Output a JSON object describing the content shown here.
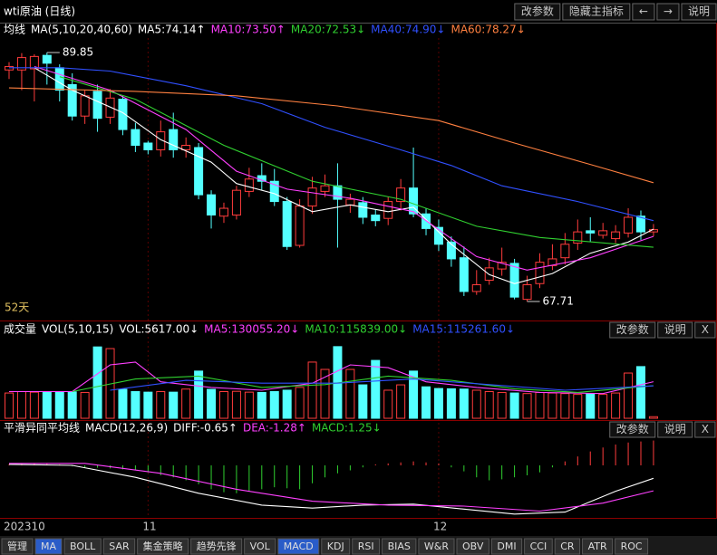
{
  "window": {
    "title": "wti原油 (日线)",
    "buttons": [
      "改参数",
      "隐藏主指标",
      "←",
      "→",
      "说明"
    ]
  },
  "chart_data": [
    {
      "type": "candlestick",
      "name": "均线",
      "indicator": "MA(5,10,20,40,60)",
      "period_label": "52天",
      "ylim": [
        66.18,
        91.14
      ],
      "xticks": [
        {
          "value": 0,
          "label": "202310"
        },
        {
          "value": 11,
          "label": "11"
        },
        {
          "value": 34,
          "label": "12"
        }
      ],
      "up_color": "#ff3c3c",
      "down_color": "#54ffff",
      "candles": [
        [
          88.3,
          89.0,
          87.5,
          88.6
        ],
        [
          88.3,
          89.8,
          86.5,
          89.4
        ],
        [
          88.4,
          89.7,
          85.5,
          89.5
        ],
        [
          89.6,
          89.85,
          87.0,
          88.9
        ],
        [
          88.5,
          88.8,
          85.5,
          86.5
        ],
        [
          87.0,
          88.0,
          83.8,
          84.2
        ],
        [
          84.2,
          86.5,
          83.5,
          86.0
        ],
        [
          86.4,
          87.0,
          82.8,
          84.0
        ],
        [
          84.1,
          86.6,
          83.5,
          85.8
        ],
        [
          85.7,
          86.0,
          82.5,
          83.0
        ],
        [
          83.0,
          83.6,
          81.0,
          81.6
        ],
        [
          81.8,
          82.0,
          80.8,
          81.2
        ],
        [
          81.2,
          83.8,
          80.6,
          82.8
        ],
        [
          83.0,
          84.5,
          80.5,
          81.2
        ],
        [
          81.2,
          82.3,
          80.5,
          81.6
        ],
        [
          81.4,
          81.8,
          76.8,
          77.2
        ],
        [
          77.2,
          77.6,
          74.2,
          75.4
        ],
        [
          75.3,
          76.5,
          74.7,
          76.0
        ],
        [
          75.4,
          78.0,
          75.0,
          77.6
        ],
        [
          77.5,
          79.6,
          77.0,
          78.6
        ],
        [
          78.9,
          80.0,
          77.6,
          78.4
        ],
        [
          78.4,
          79.5,
          76.2,
          76.6
        ],
        [
          76.6,
          77.0,
          72.3,
          72.6
        ],
        [
          72.7,
          76.8,
          72.5,
          76.2
        ],
        [
          76.2,
          78.8,
          75.5,
          77.8
        ],
        [
          77.5,
          79.0,
          77.0,
          78.0
        ],
        [
          78.0,
          80.0,
          72.5,
          76.8
        ],
        [
          76.3,
          77.3,
          75.6,
          76.8
        ],
        [
          76.5,
          77.0,
          74.6,
          75.2
        ],
        [
          75.4,
          75.9,
          74.4,
          74.9
        ],
        [
          75.1,
          77.0,
          74.5,
          76.6
        ],
        [
          76.6,
          78.6,
          75.8,
          77.8
        ],
        [
          77.8,
          81.4,
          75.2,
          75.5
        ],
        [
          75.5,
          76.0,
          73.6,
          74.2
        ],
        [
          74.3,
          75.0,
          72.2,
          72.8
        ],
        [
          73.0,
          73.5,
          70.8,
          71.5
        ],
        [
          71.6,
          72.6,
          68.2,
          68.6
        ],
        [
          68.6,
          70.5,
          68.3,
          69.2
        ],
        [
          69.6,
          71.6,
          69.2,
          70.7
        ],
        [
          70.6,
          72.5,
          70.0,
          71.2
        ],
        [
          71.1,
          71.5,
          67.9,
          68.1
        ],
        [
          67.9,
          70.0,
          67.71,
          69.2
        ],
        [
          69.3,
          72.0,
          68.9,
          71.2
        ],
        [
          70.9,
          72.8,
          70.5,
          71.5
        ],
        [
          71.6,
          73.8,
          71.0,
          72.8
        ],
        [
          72.9,
          75.0,
          72.3,
          73.9
        ],
        [
          74.0,
          75.2,
          73.0,
          73.8
        ],
        [
          73.6,
          74.7,
          73.3,
          74.0
        ],
        [
          73.3,
          74.5,
          72.9,
          73.9
        ],
        [
          73.8,
          76.0,
          73.4,
          75.2
        ],
        [
          75.3,
          75.8,
          73.2,
          73.9
        ],
        [
          73.9,
          74.6,
          73.5,
          74.1
        ]
      ],
      "series": [
        {
          "label": "MA5:74.14↑",
          "color": "#ffffff",
          "x": [
            2,
            5,
            9,
            12,
            16,
            18,
            21,
            24,
            27,
            30,
            32,
            35,
            38,
            40,
            43,
            46,
            49,
            51
          ],
          "values": [
            88.5,
            86.5,
            84.5,
            82.1,
            80.1,
            78.2,
            77.3,
            75.7,
            76.3,
            75.7,
            76.1,
            72.8,
            70.1,
            69.3,
            70.2,
            72.0,
            73.0,
            74.14
          ]
        },
        {
          "label": "MA10:73.50↑",
          "color": "#ff40ff",
          "x": [
            2,
            8,
            14,
            18,
            22,
            27,
            32,
            37,
            41,
            46,
            51
          ],
          "values": [
            88.6,
            86.5,
            83.0,
            79.3,
            77.7,
            76.9,
            75.7,
            71.7,
            70.5,
            71.6,
            73.5
          ]
        },
        {
          "label": "MA20:72.53↓",
          "color": "#30d030",
          "x": [
            4,
            10,
            17,
            24,
            31,
            37,
            42,
            51
          ],
          "values": [
            87.7,
            85.7,
            81.6,
            78.4,
            76.8,
            74.4,
            73.4,
            72.53
          ]
        },
        {
          "label": "MA40:74.90↓",
          "color": "#3050ff",
          "x": [
            0,
            4,
            8,
            14,
            20,
            25,
            31,
            35,
            39,
            45,
            51
          ],
          "values": [
            88.5,
            88.5,
            88.2,
            86.9,
            85.3,
            83.2,
            81.2,
            79.8,
            78.0,
            76.6,
            74.9
          ]
        },
        {
          "label": "MA60:78.27↓",
          "color": "#ff8040",
          "x": [
            0,
            10,
            18,
            26,
            34,
            40,
            46,
            51
          ],
          "values": [
            86.7,
            86.4,
            86.0,
            85.1,
            83.8,
            81.8,
            79.9,
            78.27
          ]
        }
      ]
    },
    {
      "type": "volume",
      "name": "成交量",
      "indicator": "VOL(5,10,15)",
      "label": "VOL:5617.00↓",
      "buttons": [
        "改参数",
        "说明",
        "X"
      ],
      "ylim": [
        0,
        290000
      ],
      "values": [
        90000,
        95000,
        93000,
        95000,
        92000,
        94000,
        92000,
        254000,
        248000,
        103000,
        95000,
        93000,
        95000,
        93000,
        104000,
        168000,
        103000,
        95000,
        96000,
        93000,
        92000,
        95000,
        100000,
        110000,
        200000,
        174000,
        255000,
        174000,
        119000,
        206000,
        100000,
        119000,
        168000,
        112000,
        106000,
        105000,
        104000,
        100000,
        95000,
        92000,
        90000,
        88000,
        92000,
        90000,
        88000,
        85000,
        88000,
        85000,
        90000,
        161000,
        184000,
        5617
      ],
      "series": [
        {
          "label": "MA5:130055.20↓",
          "color": "#ff40ff",
          "x": [
            0,
            5,
            8,
            10,
            12,
            16,
            20,
            24,
            27,
            30,
            33,
            37,
            42,
            47,
            51
          ],
          "values": [
            95000,
            95000,
            190000,
            200000,
            130000,
            110000,
            100000,
            125000,
            190000,
            180000,
            130000,
            110000,
            92000,
            88000,
            130055.2
          ]
        },
        {
          "label": "MA10:115839.00↓",
          "color": "#30d030",
          "x": [
            5,
            10,
            15,
            20,
            25,
            30,
            35,
            40,
            45,
            51
          ],
          "values": [
            95000,
            140000,
            150000,
            110000,
            120000,
            150000,
            135000,
            105000,
            92000,
            115839
          ]
        },
        {
          "label": "MA15:115261.60↓",
          "color": "#3050ff",
          "x": [
            8,
            14,
            20,
            26,
            32,
            38,
            44,
            51
          ],
          "values": [
            100000,
            135000,
            125000,
            125000,
            140000,
            120000,
            100000,
            115261.6
          ]
        }
      ]
    },
    {
      "type": "macd",
      "name": "平滑异同平均线",
      "indicator": "MACD(12,26,9)",
      "buttons": [
        "改参数",
        "说明",
        "X"
      ],
      "ylim": [
        -2.64,
        1.64
      ],
      "label": "MACD:1.25↓",
      "up_color": "#ff3c3c",
      "down_color": "#30d030",
      "values": [
        0.05,
        0.08,
        0.1,
        0.08,
        0.05,
        -0.05,
        -0.1,
        -0.12,
        -0.15,
        -0.2,
        -0.25,
        -0.35,
        -0.5,
        -0.6,
        -0.75,
        -0.95,
        -1.2,
        -1.35,
        -1.4,
        -1.3,
        -1.2,
        -1.1,
        -1.15,
        -1.2,
        -0.9,
        -0.6,
        -0.4,
        -0.25,
        -0.1,
        0.05,
        0.1,
        0.15,
        0.2,
        0.15,
        0.1,
        -0.1,
        -0.3,
        -0.6,
        -0.75,
        -0.7,
        -0.6,
        -0.5,
        -0.35,
        -0.1,
        0.2,
        0.45,
        0.7,
        0.9,
        1.05,
        1.15,
        1.2,
        1.25
      ],
      "series": [
        {
          "label": "DIFF:-0.65↑",
          "color": "#ffffff",
          "x": [
            0,
            5,
            10,
            15,
            20,
            24,
            28,
            32,
            36,
            40,
            44,
            48,
            51
          ],
          "values": [
            0.05,
            0.0,
            -0.6,
            -1.4,
            -2.0,
            -2.15,
            -2.0,
            -1.95,
            -2.2,
            -2.45,
            -2.35,
            -1.3,
            -0.65
          ]
        },
        {
          "label": "DEA:-1.28↑",
          "color": "#ff40ff",
          "x": [
            0,
            6,
            12,
            18,
            24,
            30,
            36,
            42,
            47,
            51
          ],
          "values": [
            0.1,
            0.1,
            -0.4,
            -1.2,
            -1.8,
            -2.0,
            -2.05,
            -2.3,
            -1.9,
            -1.28
          ]
        }
      ]
    }
  ],
  "tabs": [
    {
      "label": "管理"
    },
    {
      "label": "MA",
      "selected": true
    },
    {
      "label": "BOLL"
    },
    {
      "label": "SAR"
    },
    {
      "label": "集金策略"
    },
    {
      "label": "趋势先锋"
    },
    {
      "label": "VOL"
    },
    {
      "label": "MACD",
      "selected": true
    },
    {
      "label": "KDJ"
    },
    {
      "label": "RSI"
    },
    {
      "label": "BIAS"
    },
    {
      "label": "W&R"
    },
    {
      "label": "OBV"
    },
    {
      "label": "DMI"
    },
    {
      "label": "CCI"
    },
    {
      "label": "CR"
    },
    {
      "label": "ATR"
    },
    {
      "label": "ROC"
    }
  ]
}
